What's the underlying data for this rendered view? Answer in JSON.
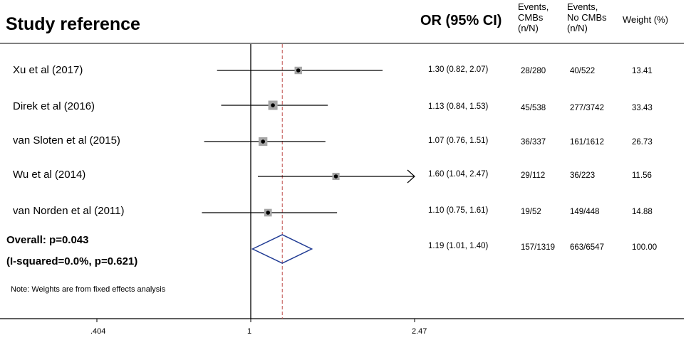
{
  "header": {
    "study_title": "Study reference",
    "or_title": "OR (95% CI)",
    "events_cmbs": [
      "Events,",
      "CMBs",
      "(n/N)"
    ],
    "events_no_cmbs": [
      "Events,",
      "No CMBs",
      "(n/N)"
    ],
    "weight": "Weight (%)"
  },
  "studies": [
    {
      "label": "Xu  et al (2017)",
      "or_ci": "1.30 (0.82, 2.07)",
      "cmbs": "28/280",
      "no_cmbs": "40/522",
      "weight": "13.41"
    },
    {
      "label": "Direk et al (2016)",
      "or_ci": "1.13 (0.84, 1.53)",
      "cmbs": "45/538",
      "no_cmbs": "277/3742",
      "weight": "33.43"
    },
    {
      "label": "van Sloten et al (2015)",
      "or_ci": "1.07 (0.76, 1.51)",
      "cmbs": "36/337",
      "no_cmbs": "161/1612",
      "weight": "26.73"
    },
    {
      "label": "Wu et al (2014)",
      "or_ci": "1.60 (1.04, 2.47)",
      "cmbs": "29/112",
      "no_cmbs": "36/223",
      "weight": "11.56"
    },
    {
      "label": "van Norden et al (2011)",
      "or_ci": "1.10 (0.75, 1.61)",
      "cmbs": "19/52",
      "no_cmbs": "149/448",
      "weight": "14.88"
    }
  ],
  "overall": {
    "label": "Overall: p=0.043",
    "heterogeneity": "(I-squared=0.0%, p=0.621)",
    "or_ci": "1.19 (1.01, 1.40)",
    "cmbs": "157/1319",
    "no_cmbs": "663/6547",
    "weight": "100.00"
  },
  "note": "Note: Weights are from fixed effects analysis",
  "chart_data": {
    "type": "forest",
    "scale": "log",
    "xlim": [
      0.404,
      2.47
    ],
    "xticks": [
      0.404,
      1,
      2.47
    ],
    "xtick_labels": [
      ".404",
      "1",
      "2.47"
    ],
    "null_line": 1,
    "pooled_line": 1.19,
    "colors": {
      "marker": "#000000",
      "box": "#a6a6a6",
      "diamond": "#1f3a93",
      "pooled_line": "#c0504d"
    },
    "studies": [
      {
        "or": 1.3,
        "lo": 0.82,
        "hi": 2.07,
        "weight": 13.41
      },
      {
        "or": 1.13,
        "lo": 0.84,
        "hi": 1.53,
        "weight": 33.43
      },
      {
        "or": 1.07,
        "lo": 0.76,
        "hi": 1.51,
        "weight": 26.73
      },
      {
        "or": 1.6,
        "lo": 1.04,
        "hi": 2.47,
        "weight": 11.56
      },
      {
        "or": 1.1,
        "lo": 0.75,
        "hi": 1.61,
        "weight": 14.88
      }
    ],
    "overall": {
      "or": 1.19,
      "lo": 1.01,
      "hi": 1.4
    }
  }
}
